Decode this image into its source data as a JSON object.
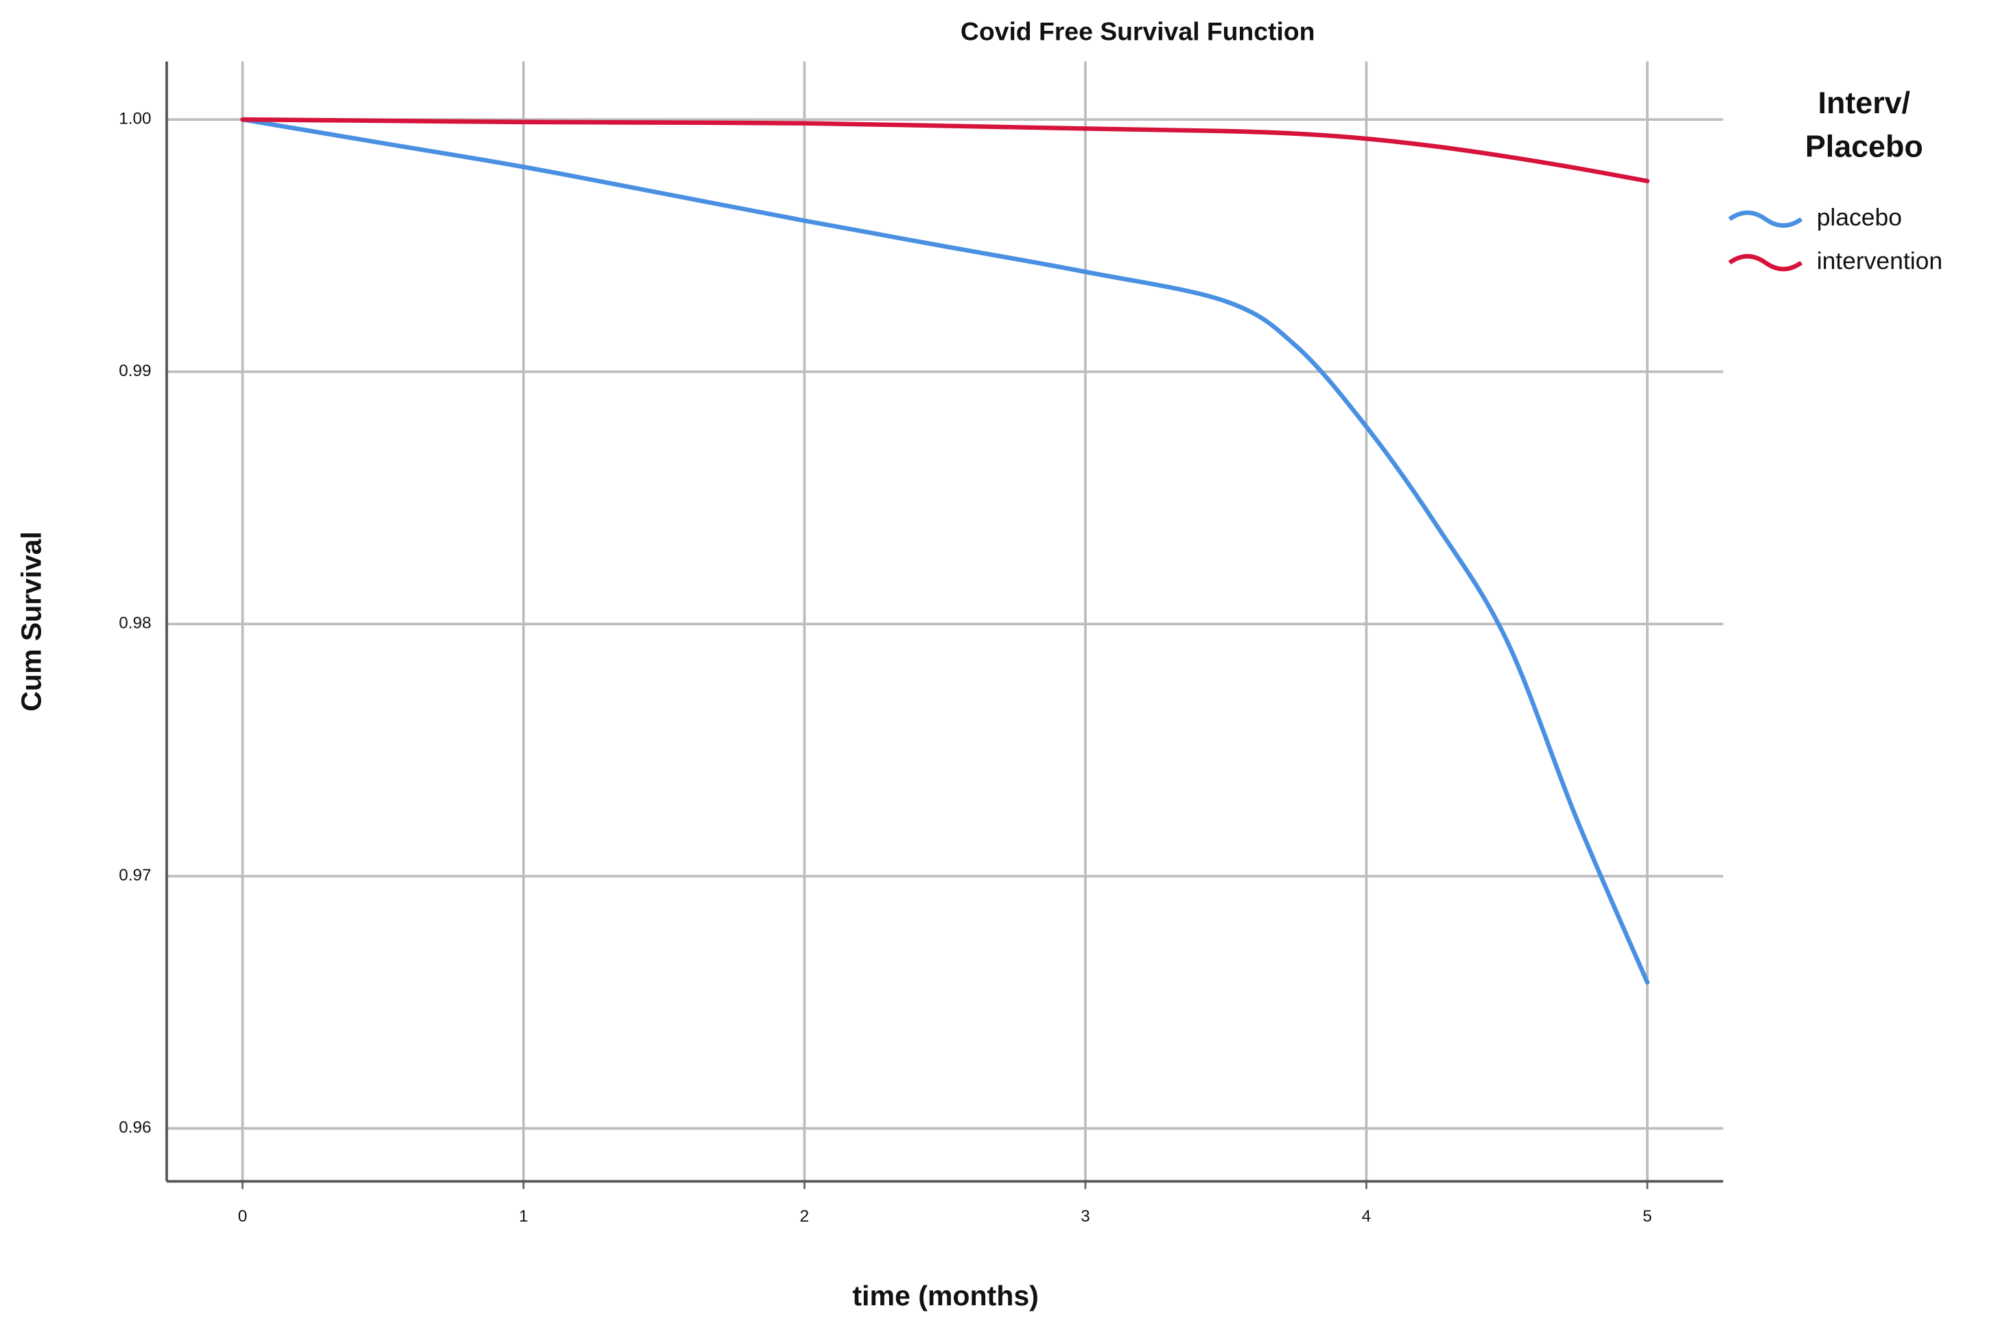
{
  "chart_data": {
    "type": "line",
    "title": "Covid Free Survival Function",
    "x_label": "time (months)",
    "y_label": "Cum Survival",
    "legend_title": [
      "Interv/",
      "Placebo"
    ],
    "legend_position": "right",
    "x": [
      0,
      0.5,
      1,
      1.5,
      2,
      2.5,
      3,
      3.5,
      3.75,
      4,
      4.25,
      4.5,
      4.75,
      5
    ],
    "series": [
      {
        "name": "placebo",
        "color": "#4a90e2",
        "values": [
          1.0,
          0.99906,
          0.99812,
          0.99706,
          0.99599,
          0.99497,
          0.99396,
          0.99279,
          0.99102,
          0.98782,
          0.98391,
          0.97934,
          0.97223,
          0.96579
        ]
      },
      {
        "name": "intervention",
        "color": "#d6133a",
        "values": [
          1.0,
          0.99995,
          0.9999,
          0.99988,
          0.99985,
          0.99975,
          0.99964,
          0.99954,
          0.99944,
          0.99924,
          0.99893,
          0.99853,
          0.99807,
          0.99756
        ]
      }
    ],
    "xlim": [
      -0.27,
      5.27
    ],
    "ylim": [
      0.9579,
      1.0023
    ],
    "xticks": [
      0,
      1,
      2,
      3,
      4,
      5
    ],
    "yticks": [
      0.96,
      0.97,
      0.98,
      0.99,
      {
        "value": 1.0,
        "label": "1.00"
      }
    ],
    "grid": true
  }
}
